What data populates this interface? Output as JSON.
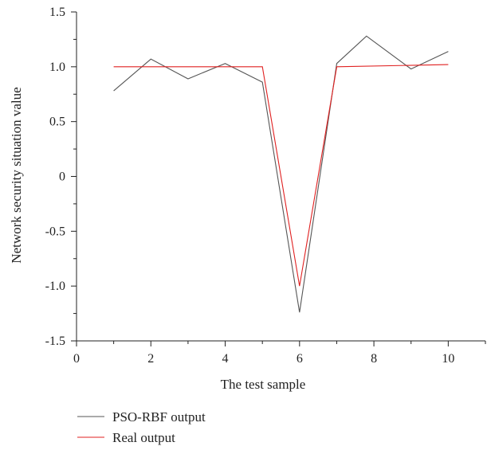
{
  "chart_data": {
    "type": "line",
    "xlabel": "The test sample",
    "ylabel": "Network security situation value",
    "xlim": [
      0,
      11
    ],
    "ylim": [
      -1.5,
      1.5
    ],
    "x_ticks": [
      0,
      2,
      4,
      6,
      8,
      10
    ],
    "x_tick_labels": [
      "0",
      "2",
      "4",
      "6",
      "8",
      "10"
    ],
    "y_ticks": [
      -1.5,
      -1.0,
      -0.5,
      0,
      0.5,
      1.0,
      1.5
    ],
    "y_tick_labels": [
      "-1.5",
      "-1.0",
      "-0.5",
      "0",
      "0.5",
      "1.0",
      "1.5"
    ],
    "grid": false,
    "legend_position": "bottom-left-below-axes",
    "series": [
      {
        "name": "PSO-RBF output",
        "color": "#555555",
        "x": [
          1,
          2,
          3,
          4,
          5,
          6,
          7,
          7.8,
          9,
          10
        ],
        "y": [
          0.78,
          1.07,
          0.89,
          1.03,
          0.86,
          -1.24,
          1.03,
          1.28,
          0.98,
          1.14
        ]
      },
      {
        "name": "Real output",
        "color": "#e02020",
        "x": [
          1,
          5,
          6,
          7,
          10
        ],
        "y": [
          1.0,
          1.0,
          -1.0,
          1.0,
          1.02
        ]
      }
    ]
  }
}
